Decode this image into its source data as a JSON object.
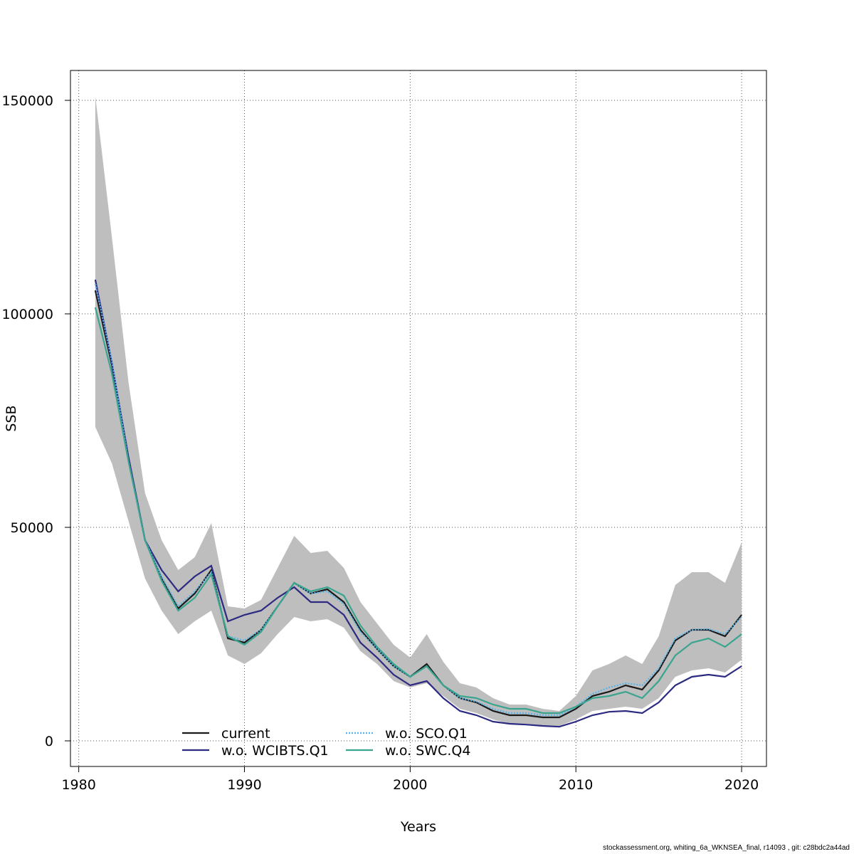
{
  "chart_data": {
    "type": "line",
    "xlabel": "Years",
    "ylabel": "SSB",
    "xlim": [
      1979.5,
      2021.5
    ],
    "ylim": [
      -6000,
      157000
    ],
    "xticks": [
      1980,
      1990,
      2000,
      2010,
      2020
    ],
    "xtick_labels": [
      "1980",
      "1990",
      "2000",
      "2010",
      "2020"
    ],
    "yticks": [
      0,
      50000,
      100000,
      150000
    ],
    "ytick_labels": [
      "0",
      "50000",
      "100000",
      "150000"
    ],
    "grid": true,
    "legend_position": "bottom-center",
    "x": [
      1981,
      1982,
      1983,
      1984,
      1985,
      1986,
      1987,
      1988,
      1989,
      1990,
      1991,
      1992,
      1993,
      1994,
      1995,
      1996,
      1997,
      1998,
      1999,
      2000,
      2001,
      2002,
      2003,
      2004,
      2005,
      2006,
      2007,
      2008,
      2009,
      2010,
      2011,
      2012,
      2013,
      2014,
      2015,
      2016,
      2017,
      2018,
      2019,
      2020
    ],
    "band": {
      "color": "#bebebe",
      "upper": [
        151000,
        118000,
        84000,
        58000,
        47000,
        40000,
        43000,
        51000,
        31500,
        31000,
        33000,
        40500,
        48000,
        44000,
        44500,
        40500,
        32500,
        27500,
        22500,
        19500,
        25000,
        18500,
        13500,
        12500,
        10000,
        8500,
        8500,
        7500,
        7000,
        10500,
        16500,
        18000,
        20000,
        18000,
        24500,
        36500,
        39500,
        39500,
        37000,
        46500
      ],
      "lower": [
        73500,
        65000,
        51500,
        38000,
        30500,
        25000,
        28000,
        30500,
        20000,
        18000,
        20500,
        25000,
        29000,
        28000,
        28500,
        26500,
        21000,
        18000,
        14000,
        12500,
        13500,
        10500,
        7500,
        6500,
        5000,
        4000,
        4000,
        3500,
        3500,
        5000,
        7000,
        7500,
        8000,
        7500,
        10000,
        15000,
        16500,
        17000,
        16000,
        19000
      ]
    },
    "series": [
      {
        "name": "current",
        "color": "#1a1a1a",
        "dash": "solid",
        "values": [
          105500,
          88000,
          66000,
          47000,
          38000,
          31000,
          34500,
          40000,
          24000,
          23000,
          26000,
          31500,
          37000,
          34500,
          35500,
          32500,
          26000,
          21500,
          17500,
          15000,
          18000,
          13000,
          10000,
          9000,
          7000,
          6000,
          6000,
          5500,
          5500,
          7500,
          10500,
          11500,
          13000,
          12000,
          16500,
          23500,
          26000,
          26000,
          24500,
          29500
        ]
      },
      {
        "name": "w.o. WCIBTS.Q1",
        "color": "#2d2a82",
        "dash": "solid",
        "values": [
          108000,
          88500,
          66500,
          47000,
          40000,
          35000,
          38500,
          41000,
          28000,
          29500,
          30500,
          33500,
          36000,
          32500,
          32500,
          29500,
          23000,
          19500,
          15500,
          13000,
          14000,
          10000,
          7000,
          6000,
          4500,
          4000,
          3800,
          3500,
          3300,
          4500,
          6000,
          6800,
          7000,
          6500,
          9000,
          13000,
          15000,
          15500,
          15000,
          17500
        ]
      },
      {
        "name": "w.o. SCO.Q1",
        "color": "#56b4e9",
        "dash": "dotted",
        "values": [
          107000,
          89000,
          65500,
          47000,
          38500,
          31500,
          35000,
          39500,
          24500,
          23500,
          26000,
          31500,
          37000,
          34500,
          35000,
          32000,
          25500,
          21500,
          17500,
          15000,
          17500,
          13000,
          10000,
          9200,
          7500,
          6500,
          6500,
          6000,
          6000,
          8000,
          11000,
          12500,
          13500,
          13000,
          17000,
          24000,
          26000,
          26200,
          25000,
          29000
        ]
      },
      {
        "name": "w.o. SWC.Q4",
        "color": "#3aa58f",
        "dash": "solid",
        "values": [
          101500,
          86000,
          65500,
          47000,
          37500,
          30500,
          33500,
          39000,
          24500,
          22500,
          25500,
          31500,
          37000,
          35000,
          36000,
          34000,
          27000,
          22000,
          18000,
          15000,
          17500,
          13000,
          10500,
          10000,
          8500,
          7500,
          7500,
          6500,
          6500,
          8000,
          10000,
          10500,
          11500,
          10000,
          14000,
          20000,
          23000,
          24000,
          22000,
          25000
        ]
      }
    ]
  },
  "footer_text": "stockassessment.org, whiting_6a_WKNSEA_final, r14093 , git: c28bdc2a44ad"
}
